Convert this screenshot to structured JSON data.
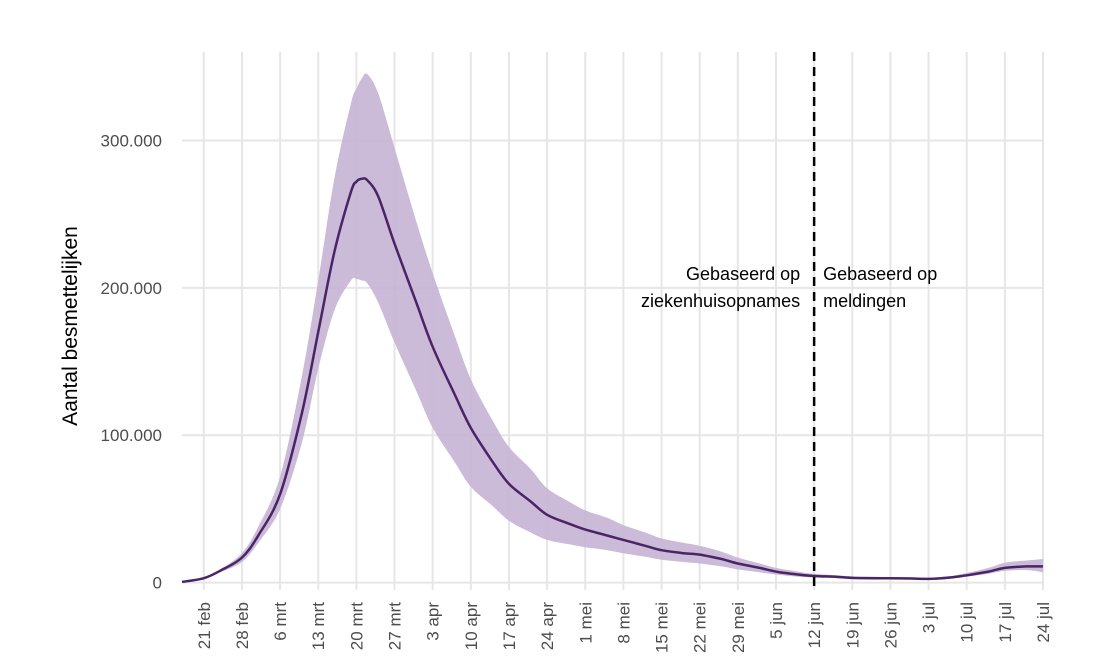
{
  "chart_data": {
    "type": "area",
    "title": "",
    "xlabel": "",
    "ylabel": "Aantal besmettelijken",
    "x_axis": {
      "ticks": [
        {
          "date": "2020-02-21",
          "label": "21 feb"
        },
        {
          "date": "2020-02-28",
          "label": "28 feb"
        },
        {
          "date": "2020-03-06",
          "label": "6 mrt"
        },
        {
          "date": "2020-03-13",
          "label": "13 mrt"
        },
        {
          "date": "2020-03-20",
          "label": "20 mrt"
        },
        {
          "date": "2020-03-27",
          "label": "27 mrt"
        },
        {
          "date": "2020-04-03",
          "label": "3 apr"
        },
        {
          "date": "2020-04-10",
          "label": "10 apr"
        },
        {
          "date": "2020-04-17",
          "label": "17 apr"
        },
        {
          "date": "2020-04-24",
          "label": "24 apr"
        },
        {
          "date": "2020-05-01",
          "label": "1 mei"
        },
        {
          "date": "2020-05-08",
          "label": "8 mei"
        },
        {
          "date": "2020-05-15",
          "label": "15 mei"
        },
        {
          "date": "2020-05-22",
          "label": "22 mei"
        },
        {
          "date": "2020-05-29",
          "label": "29 mei"
        },
        {
          "date": "2020-06-05",
          "label": "5 jun"
        },
        {
          "date": "2020-06-12",
          "label": "12 jun"
        },
        {
          "date": "2020-06-19",
          "label": "19 jun"
        },
        {
          "date": "2020-06-26",
          "label": "26 jun"
        },
        {
          "date": "2020-07-03",
          "label": "3 jul"
        },
        {
          "date": "2020-07-10",
          "label": "10 jul"
        },
        {
          "date": "2020-07-17",
          "label": "17 jul"
        },
        {
          "date": "2020-07-24",
          "label": "24 jul"
        }
      ],
      "range": [
        "2020-02-17",
        "2020-07-24"
      ]
    },
    "y_axis": {
      "ticks": [
        {
          "value": 0,
          "label": "0"
        },
        {
          "value": 100000,
          "label": "100.000"
        },
        {
          "value": 200000,
          "label": "200.000"
        },
        {
          "value": 300000,
          "label": "300.000"
        }
      ],
      "range": [
        -5000,
        360000
      ]
    },
    "grid": true,
    "colors": {
      "line": "#4a2566",
      "band": "#c5b3d4",
      "divider": "#000000"
    },
    "series": [
      {
        "x": [
          "2020-02-17",
          "2020-02-21",
          "2020-02-24",
          "2020-02-28",
          "2020-03-02",
          "2020-03-06",
          "2020-03-10",
          "2020-03-13",
          "2020-03-16",
          "2020-03-19",
          "2020-03-20",
          "2020-03-21",
          "2020-03-22",
          "2020-03-24",
          "2020-03-27",
          "2020-03-31",
          "2020-04-03",
          "2020-04-07",
          "2020-04-10",
          "2020-04-14",
          "2020-04-17",
          "2020-04-21",
          "2020-04-24",
          "2020-04-28",
          "2020-05-01",
          "2020-05-05",
          "2020-05-08",
          "2020-05-12",
          "2020-05-15",
          "2020-05-19",
          "2020-05-22",
          "2020-05-26",
          "2020-05-29",
          "2020-06-02",
          "2020-06-05",
          "2020-06-09",
          "2020-06-12",
          "2020-06-16",
          "2020-06-19",
          "2020-06-23",
          "2020-06-26",
          "2020-06-30",
          "2020-07-03",
          "2020-07-07",
          "2020-07-10",
          "2020-07-14",
          "2020-07-17",
          "2020-07-21",
          "2020-07-24"
        ],
        "values": [
          500,
          3000,
          8000,
          17000,
          32000,
          60000,
          115000,
          170000,
          225000,
          265000,
          272000,
          274000,
          273000,
          262000,
          230000,
          190000,
          160000,
          128000,
          105000,
          82000,
          67000,
          55000,
          46000,
          40000,
          36000,
          32000,
          29000,
          25000,
          22000,
          20000,
          19000,
          16000,
          13000,
          10000,
          7500,
          5500,
          4500,
          4000,
          3200,
          3000,
          3000,
          2800,
          2500,
          3500,
          5000,
          7500,
          10000,
          11000,
          11000
        ],
        "lower": [
          500,
          2800,
          7000,
          14000,
          27000,
          50000,
          95000,
          145000,
          185000,
          205000,
          206000,
          205000,
          203000,
          190000,
          163000,
          130000,
          105000,
          82000,
          65000,
          52000,
          42000,
          34000,
          29000,
          26000,
          24000,
          22000,
          20000,
          17500,
          15500,
          14000,
          13000,
          11000,
          9000,
          7000,
          5500,
          4000,
          3500,
          3000,
          2500,
          2300,
          2300,
          2200,
          2000,
          2800,
          4000,
          6000,
          8000,
          8500,
          7000
        ],
        "upper": [
          500,
          3200,
          9000,
          20000,
          38000,
          72000,
          140000,
          205000,
          275000,
          325000,
          335000,
          342000,
          345000,
          332000,
          295000,
          245000,
          210000,
          168000,
          138000,
          110000,
          92000,
          77000,
          64000,
          55000,
          49000,
          44000,
          39000,
          34000,
          30000,
          27000,
          25000,
          21000,
          17000,
          13000,
          10000,
          7500,
          6000,
          5000,
          4200,
          4000,
          3800,
          3500,
          3200,
          4500,
          6500,
          10000,
          13500,
          15000,
          16000
        ]
      }
    ],
    "divider": {
      "date": "2020-06-12",
      "style": "dashed"
    },
    "annotations": [
      {
        "lines": [
          "Gebaseerd op",
          "ziekenhuisopnames"
        ],
        "align": "right"
      },
      {
        "lines": [
          "Gebaseerd op",
          "meldingen"
        ],
        "align": "left"
      }
    ]
  }
}
